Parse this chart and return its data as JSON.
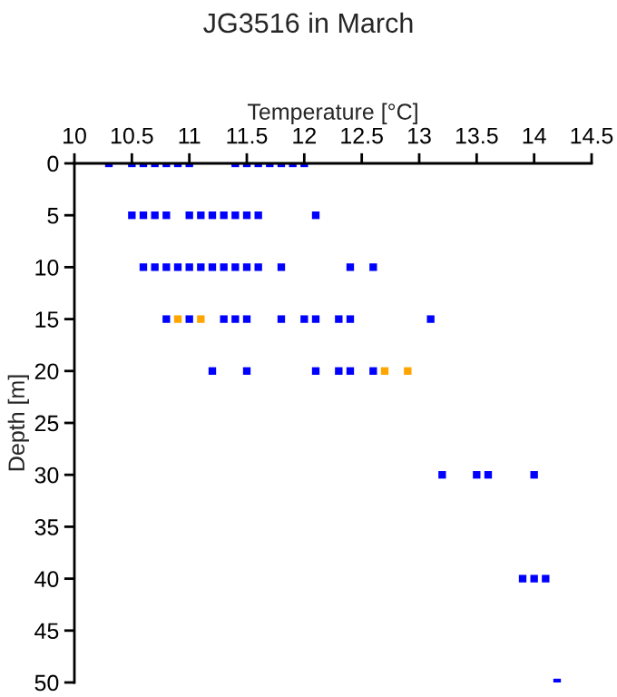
{
  "chart_data": {
    "type": "scatter",
    "title": "JG3516 in March",
    "xlabel": "Temperature [°C]",
    "ylabel": "Depth [m]",
    "xlim": [
      10,
      14.5
    ],
    "xticks": [
      10,
      10.5,
      11,
      11.5,
      12,
      12.5,
      13,
      13.5,
      14,
      14.5
    ],
    "ylim": [
      50,
      0
    ],
    "yticks": [
      0,
      5,
      10,
      15,
      20,
      25,
      30,
      35,
      40,
      45,
      50
    ],
    "grid": false,
    "legend": false,
    "marker": "square",
    "series": [
      {
        "color": "#0000ff",
        "x": [
          10.3,
          10.5,
          10.6,
          10.7,
          10.8,
          10.9,
          11.0,
          11.4,
          11.5,
          11.6,
          11.7,
          11.8,
          11.9,
          12.0,
          10.5,
          10.6,
          10.7,
          10.8,
          11.0,
          11.1,
          11.2,
          11.3,
          11.4,
          11.5,
          11.6,
          12.1,
          10.6,
          10.7,
          10.8,
          10.9,
          11.0,
          11.1,
          11.2,
          11.3,
          11.4,
          11.5,
          11.6,
          11.8,
          12.4,
          12.6,
          10.8,
          11.0,
          11.3,
          11.4,
          11.5,
          11.8,
          12.0,
          12.1,
          12.3,
          12.4,
          13.1,
          11.2,
          11.5,
          12.1,
          12.3,
          12.4,
          12.6,
          13.2,
          13.5,
          13.6,
          14.0,
          13.9,
          14.0,
          14.1,
          14.2
        ],
        "values": [
          0,
          0,
          0,
          0,
          0,
          0,
          0,
          0,
          0,
          0,
          0,
          0,
          0,
          0,
          5,
          5,
          5,
          5,
          5,
          5,
          5,
          5,
          5,
          5,
          5,
          5,
          10,
          10,
          10,
          10,
          10,
          10,
          10,
          10,
          10,
          10,
          10,
          10,
          10,
          10,
          15,
          15,
          15,
          15,
          15,
          15,
          15,
          15,
          15,
          15,
          15,
          20,
          20,
          20,
          20,
          20,
          20,
          30,
          30,
          30,
          30,
          40,
          40,
          40,
          50
        ]
      },
      {
        "color": "#ffa500",
        "x": [
          10.9,
          11.1,
          12.7,
          12.9
        ],
        "values": [
          15,
          15,
          20,
          20
        ]
      }
    ]
  }
}
